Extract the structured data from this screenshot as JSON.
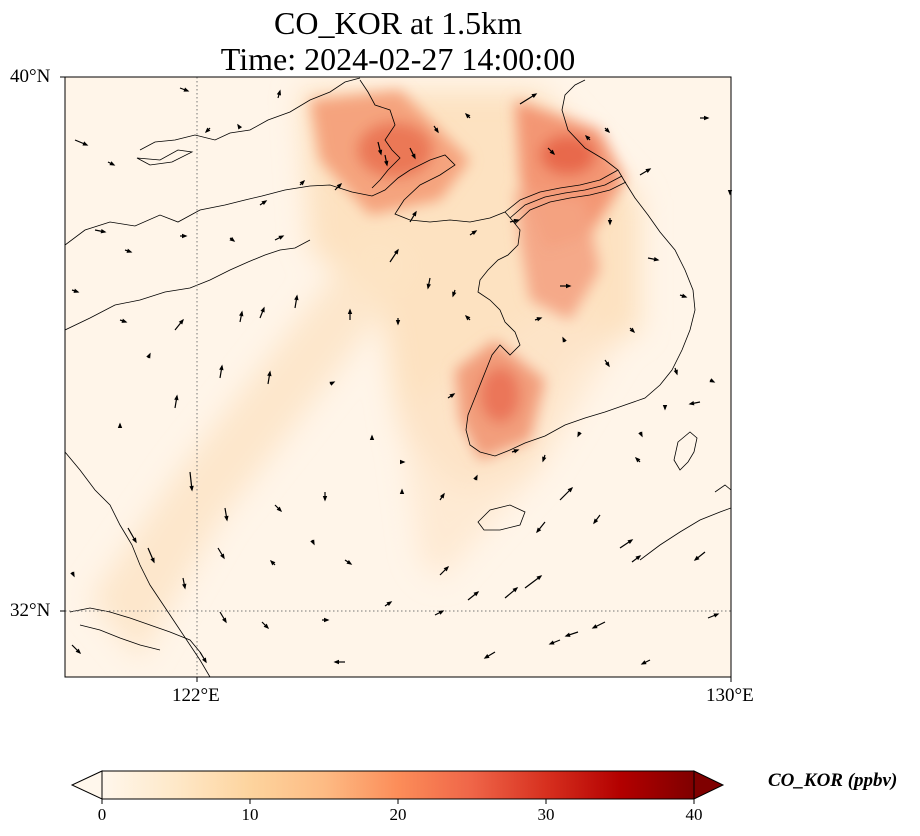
{
  "title_line1": "CO_KOR at 1.5km",
  "title_line2": "Time: 2024-02-27 14:00:00",
  "axes": {
    "lat_ticks": [
      "40°N",
      "32°N"
    ],
    "lon_ticks": [
      "122°E",
      "130°E"
    ],
    "gridlines": "dotted"
  },
  "colorbar": {
    "label": "CO_KOR (ppbv)",
    "ticks": [
      "0",
      "10",
      "20",
      "30",
      "40"
    ],
    "range": [
      0,
      40
    ],
    "extend": "both",
    "colormap": "OrRd"
  },
  "map": {
    "variable": "CO_KOR",
    "level": "1.5km",
    "extent": {
      "lon": [
        120,
        130
      ],
      "lat": [
        31,
        40
      ]
    },
    "plume_hotspots": [
      {
        "lon": 125.5,
        "lat": 39.0,
        "ppbv": 22
      },
      {
        "lon": 127.5,
        "lat": 39.0,
        "ppbv": 24
      },
      {
        "lon": 127.0,
        "lat": 37.5,
        "ppbv": 20
      },
      {
        "lon": 126.6,
        "lat": 35.2,
        "ppbv": 22
      }
    ]
  }
}
